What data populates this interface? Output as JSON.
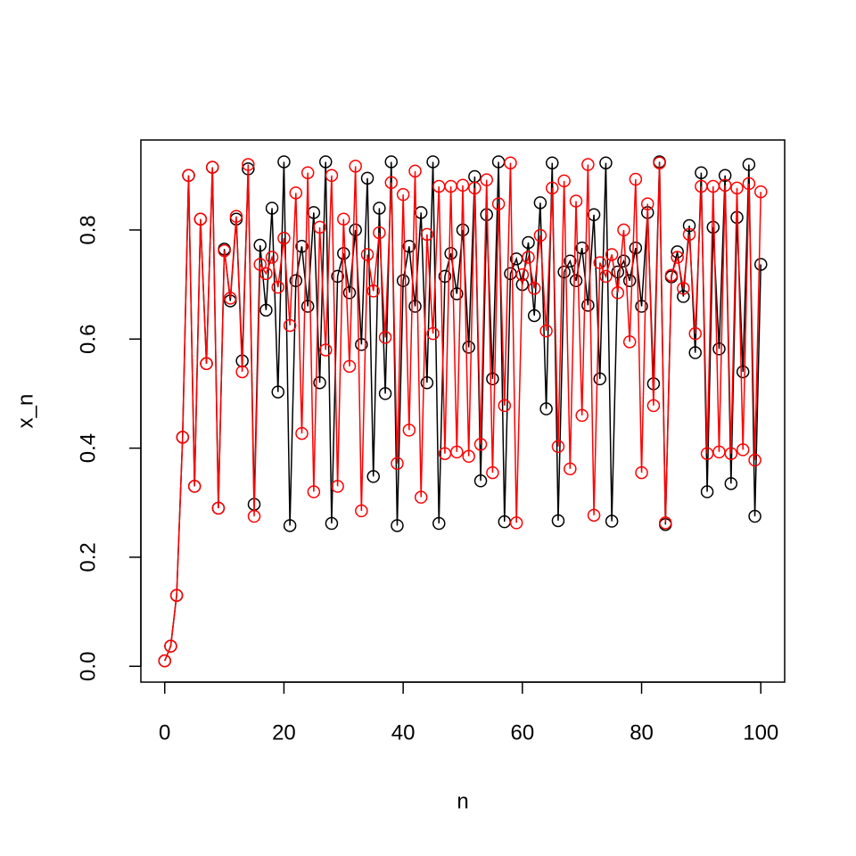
{
  "chart_data": {
    "type": "line",
    "x_label": "n",
    "y_label": "x_n",
    "x": [
      0,
      1,
      2,
      3,
      4,
      5,
      6,
      7,
      8,
      9,
      10,
      11,
      12,
      13,
      14,
      15,
      16,
      17,
      18,
      19,
      20,
      21,
      22,
      23,
      24,
      25,
      26,
      27,
      28,
      29,
      30,
      31,
      32,
      33,
      34,
      35,
      36,
      37,
      38,
      39,
      40,
      41,
      42,
      43,
      44,
      45,
      46,
      47,
      48,
      49,
      50,
      51,
      52,
      53,
      54,
      55,
      56,
      57,
      58,
      59,
      60,
      61,
      62,
      63,
      64,
      65,
      66,
      67,
      68,
      69,
      70,
      71,
      72,
      73,
      74,
      75,
      76,
      77,
      78,
      79,
      80,
      81,
      82,
      83,
      84,
      85,
      86,
      87,
      88,
      89,
      90,
      91,
      92,
      93,
      94,
      95,
      96,
      97,
      98,
      99,
      100
    ],
    "series": [
      {
        "color": "#000000",
        "values": [
          0.01,
          0.037,
          0.13,
          0.42,
          0.9,
          0.33,
          0.82,
          0.555,
          0.915,
          0.29,
          0.765,
          0.67,
          0.82,
          0.56,
          0.912,
          0.297,
          0.772,
          0.653,
          0.84,
          0.503,
          0.925,
          0.258,
          0.707,
          0.77,
          0.66,
          0.832,
          0.52,
          0.925,
          0.262,
          0.715,
          0.757,
          0.685,
          0.8,
          0.59,
          0.895,
          0.348,
          0.84,
          0.5,
          0.925,
          0.258,
          0.707,
          0.77,
          0.66,
          0.832,
          0.52,
          0.925,
          0.262,
          0.715,
          0.757,
          0.683,
          0.8,
          0.585,
          0.898,
          0.34,
          0.828,
          0.527,
          0.925,
          0.265,
          0.72,
          0.747,
          0.7,
          0.777,
          0.643,
          0.85,
          0.472,
          0.923,
          0.267,
          0.723,
          0.743,
          0.707,
          0.767,
          0.662,
          0.828,
          0.527,
          0.923,
          0.266,
          0.723,
          0.743,
          0.707,
          0.767,
          0.66,
          0.832,
          0.518,
          0.925,
          0.26,
          0.714,
          0.76,
          0.678,
          0.808,
          0.575,
          0.905,
          0.32,
          0.805,
          0.582,
          0.9,
          0.335,
          0.823,
          0.54,
          0.92,
          0.275,
          0.737
        ]
      },
      {
        "color": "#ff0000",
        "values": [
          0.01,
          0.037,
          0.13,
          0.42,
          0.9,
          0.33,
          0.82,
          0.555,
          0.915,
          0.29,
          0.762,
          0.675,
          0.825,
          0.54,
          0.92,
          0.275,
          0.737,
          0.72,
          0.75,
          0.695,
          0.785,
          0.625,
          0.868,
          0.427,
          0.905,
          0.32,
          0.805,
          0.58,
          0.9,
          0.33,
          0.82,
          0.55,
          0.917,
          0.285,
          0.755,
          0.688,
          0.795,
          0.603,
          0.887,
          0.372,
          0.865,
          0.433,
          0.908,
          0.31,
          0.792,
          0.61,
          0.88,
          0.39,
          0.88,
          0.393,
          0.882,
          0.385,
          0.877,
          0.407,
          0.892,
          0.355,
          0.848,
          0.478,
          0.923,
          0.263,
          0.718,
          0.75,
          0.693,
          0.79,
          0.615,
          0.877,
          0.403,
          0.89,
          0.362,
          0.853,
          0.46,
          0.92,
          0.277,
          0.74,
          0.715,
          0.755,
          0.685,
          0.8,
          0.595,
          0.893,
          0.355,
          0.848,
          0.478,
          0.923,
          0.263,
          0.717,
          0.75,
          0.693,
          0.792,
          0.61,
          0.88,
          0.39,
          0.88,
          0.393,
          0.882,
          0.39,
          0.877,
          0.397,
          0.885,
          0.378,
          0.87
        ]
      }
    ],
    "xlim": [
      -4,
      104
    ],
    "ylim": [
      -0.029,
      0.965
    ],
    "xticks": [
      0,
      20,
      40,
      60,
      80,
      100
    ],
    "yticks": [
      {
        "value": 0,
        "label": "0.0"
      },
      0.2,
      0.4,
      0.6,
      0.8
    ]
  }
}
